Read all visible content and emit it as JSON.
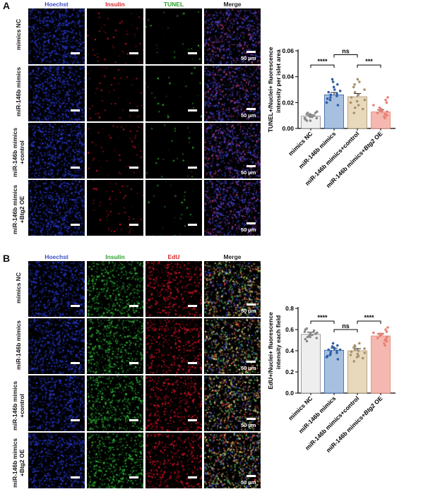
{
  "panels": [
    {
      "letter": "A",
      "columns": [
        "Hoechst",
        "Insulin",
        "TUNEL",
        "Merge"
      ],
      "column_colors": [
        "#3b4fc4",
        "#d62728",
        "#2ca02c",
        "#222222"
      ],
      "rows": [
        "mimics NC",
        "miR-146b mimics",
        "miR-146b mimics\n+control",
        "miR-146b mimics\n+Btg2 OE"
      ],
      "scale_label": "50 µm",
      "channel_colors": [
        "#2a3bd6",
        "#e0152a",
        "#3cd23c",
        "#6a55c8"
      ]
    },
    {
      "letter": "B",
      "columns": [
        "Hoechst",
        "Insulin",
        "EdU",
        "Merge"
      ],
      "column_colors": [
        "#3b4fc4",
        "#2ca02c",
        "#d62728",
        "#222222"
      ],
      "rows": [
        "mimics NC",
        "miR-146b mimics",
        "miR-146b mimics\n+control",
        "miR-146b mimics\n+Btg2 OE"
      ],
      "scale_label": "50 µm",
      "channel_colors": [
        "#2a3bd6",
        "#2fc13a",
        "#e0152a",
        "#c8a848"
      ]
    }
  ],
  "chart_data": [
    {
      "type": "bar",
      "ylabel": "TUNEL+/Nuclei+ fluorescence intensity per islet area",
      "categories": [
        "mimics NC",
        "miR-146b mimics",
        "miR-146b mimics+control",
        "miR-146b mimics+Btg2 OE"
      ],
      "values": [
        0.0095,
        0.026,
        0.0245,
        0.0128
      ],
      "errors": [
        0.001,
        0.0018,
        0.0025,
        0.0015
      ],
      "ylim": [
        0,
        0.06
      ],
      "yticks": [
        "0.00",
        "0.02",
        "0.04",
        "0.06"
      ],
      "bar_colors": [
        "#eeeeee",
        "#a8c0e0",
        "#e8d9bd",
        "#f4b8b1"
      ],
      "dot_colors": [
        "#8a8a8a",
        "#2e5fa8",
        "#a8926a",
        "#e88072"
      ],
      "points": [
        [
          0.006,
          0.007,
          0.008,
          0.009,
          0.01,
          0.011,
          0.012,
          0.013,
          0.008,
          0.01,
          0.007,
          0.011,
          0.009,
          0.006,
          0.012
        ],
        [
          0.018,
          0.02,
          0.022,
          0.024,
          0.025,
          0.026,
          0.027,
          0.028,
          0.03,
          0.032,
          0.034,
          0.036,
          0.023,
          0.029,
          0.038
        ],
        [
          0.012,
          0.015,
          0.018,
          0.02,
          0.022,
          0.024,
          0.026,
          0.028,
          0.03,
          0.032,
          0.034,
          0.036,
          0.038,
          0.016,
          0.021
        ],
        [
          0.008,
          0.009,
          0.01,
          0.011,
          0.012,
          0.013,
          0.014,
          0.015,
          0.016,
          0.018,
          0.02,
          0.022,
          0.024,
          0.011,
          0.013
        ]
      ],
      "significance": [
        {
          "from": 0,
          "to": 1,
          "label": "****",
          "y": 0.049
        },
        {
          "from": 1,
          "to": 2,
          "label": "ns",
          "y": 0.057
        },
        {
          "from": 2,
          "to": 3,
          "label": "***",
          "y": 0.049
        }
      ],
      "italic_part": "Btg2"
    },
    {
      "type": "bar",
      "ylabel": "EdU+/Nuclei+ fluorescence intensity each field",
      "categories": [
        "mimics NC",
        "miR-146b mimics",
        "miR-146b mimics+control",
        "miR-146b mimics+Btg2 OE"
      ],
      "values": [
        0.555,
        0.405,
        0.4,
        0.54
      ],
      "errors": [
        0.02,
        0.02,
        0.02,
        0.02
      ],
      "ylim": [
        0,
        0.8
      ],
      "yticks": [
        "0.0",
        "0.2",
        "0.4",
        "0.6",
        "0.8"
      ],
      "bar_colors": [
        "#eeeeee",
        "#a8c0e0",
        "#e8d9bd",
        "#f4b8b1"
      ],
      "dot_colors": [
        "#8a8a8a",
        "#2e5fa8",
        "#a8926a",
        "#e88072"
      ],
      "points": [
        [
          0.49,
          0.51,
          0.52,
          0.53,
          0.54,
          0.55,
          0.56,
          0.57,
          0.58,
          0.59,
          0.6,
          0.61,
          0.55,
          0.57,
          0.53
        ],
        [
          0.32,
          0.34,
          0.36,
          0.37,
          0.38,
          0.39,
          0.4,
          0.41,
          0.42,
          0.43,
          0.45,
          0.47,
          0.35,
          0.41,
          0.44
        ],
        [
          0.3,
          0.33,
          0.35,
          0.36,
          0.38,
          0.39,
          0.4,
          0.41,
          0.42,
          0.43,
          0.45,
          0.47,
          0.37,
          0.44,
          0.34
        ],
        [
          0.45,
          0.47,
          0.49,
          0.51,
          0.52,
          0.53,
          0.54,
          0.55,
          0.56,
          0.57,
          0.58,
          0.6,
          0.62,
          0.5,
          0.56
        ]
      ],
      "significance": [
        {
          "from": 0,
          "to": 1,
          "label": "****",
          "y": 0.68
        },
        {
          "from": 1,
          "to": 2,
          "label": "ns",
          "y": 0.6
        },
        {
          "from": 2,
          "to": 3,
          "label": "****",
          "y": 0.68
        }
      ],
      "italic_part": "Btg2"
    }
  ]
}
